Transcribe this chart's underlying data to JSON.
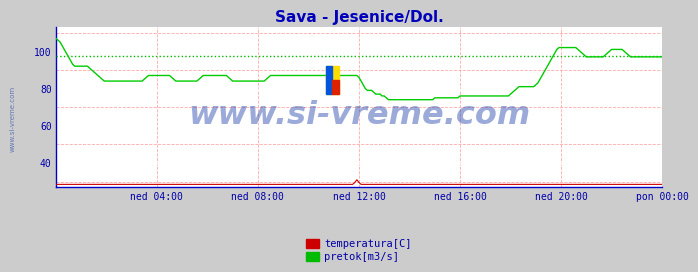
{
  "title": "Sava - Jesenice/Dol.",
  "title_color": "#0000bb",
  "bg_color": "#cccccc",
  "plot_bg_color": "#ffffff",
  "grid_major_color": "#ffffff",
  "grid_minor_h_color": "#ffaaaa",
  "grid_minor_v_color": "#ffaaaa",
  "xlabel_ticks": [
    "ned 04:00",
    "ned 08:00",
    "ned 12:00",
    "ned 16:00",
    "ned 20:00",
    "pon 00:00"
  ],
  "yticks": [
    40,
    60,
    80,
    100
  ],
  "ylim": [
    27,
    113
  ],
  "xlim": [
    0,
    288
  ],
  "watermark": "www.si-vreme.com",
  "watermark_color": "#2244aa",
  "watermark_alpha": 0.45,
  "legend_items": [
    {
      "label": "temperatura[C]",
      "color": "#cc0000"
    },
    {
      "label": "pretok[m3/s]",
      "color": "#00bb00"
    }
  ],
  "dashed_line_value": 97.5,
  "dashed_line_color": "#00bb00",
  "temp_line_color": "#cc0000",
  "flow_color": "#00cc00",
  "axis_color": "#0000cc",
  "tick_color": "#0000aa",
  "spine_color": "#0000cc",
  "left_label_color": "#0000aa"
}
